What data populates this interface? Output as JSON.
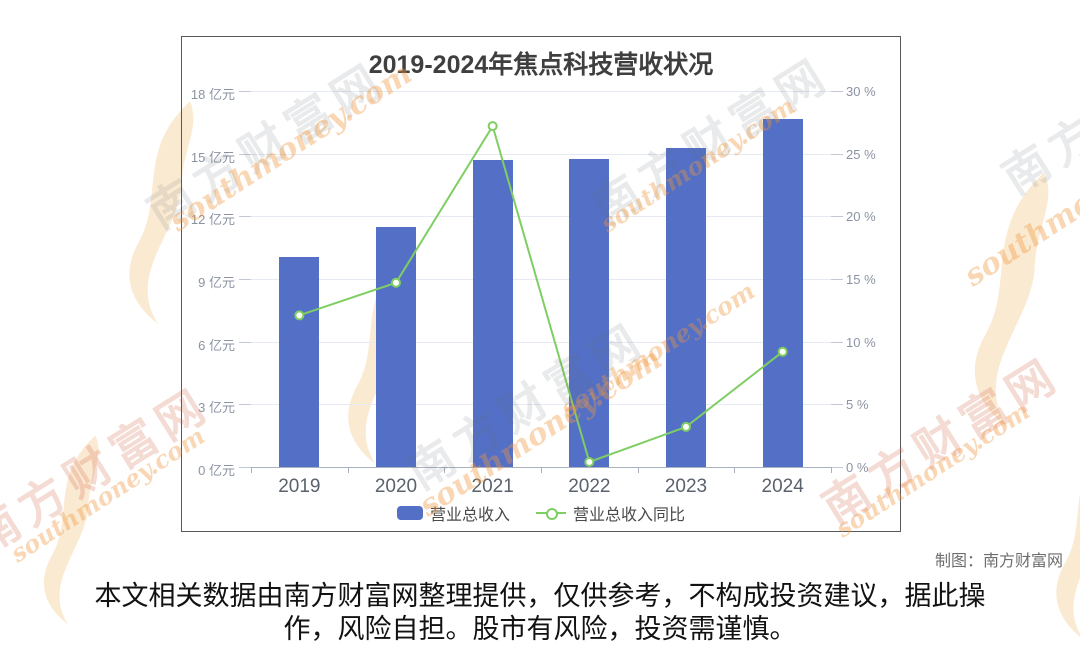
{
  "page": {
    "credit": "制图：南方财富网",
    "disclaimer_line1": "本文相关数据由南方财富网整理提供，仅供参考，不构成投资建议，据此操",
    "disclaimer_line2": "作，风险自担。股市有风险，投资需谨慎。"
  },
  "watermark": {
    "site_name": "南方财富网",
    "site_url": "southmoney.com"
  },
  "chart_data": {
    "type": "bar+line",
    "title": "2019-2024年焦点科技营收状况",
    "categories": [
      "2019",
      "2020",
      "2021",
      "2022",
      "2023",
      "2024"
    ],
    "series": [
      {
        "name": "营业总收入",
        "type": "bar",
        "axis": "left",
        "unit": "亿元",
        "color": "#5470c6",
        "values": [
          10.04,
          11.51,
          14.7,
          14.76,
          15.25,
          16.65
        ]
      },
      {
        "name": "营业总收入同比",
        "type": "line",
        "axis": "right",
        "unit": "%",
        "color": "#7fce63",
        "marker": "hollow-circle",
        "values": [
          12.1,
          14.7,
          27.2,
          0.4,
          3.2,
          9.2
        ]
      }
    ],
    "left_axis": {
      "min": 0,
      "max": 18,
      "step": 3,
      "ticks": [
        "0 亿元",
        "3 亿元",
        "6 亿元",
        "9 亿元",
        "12 亿元",
        "15 亿元",
        "18 亿元"
      ]
    },
    "right_axis": {
      "min": 0,
      "max": 30,
      "step": 5,
      "ticks": [
        "0 %",
        "5 %",
        "10 %",
        "15 %",
        "20 %",
        "25 %",
        "30 %"
      ]
    },
    "grid": true,
    "legend_position": "bottom"
  }
}
